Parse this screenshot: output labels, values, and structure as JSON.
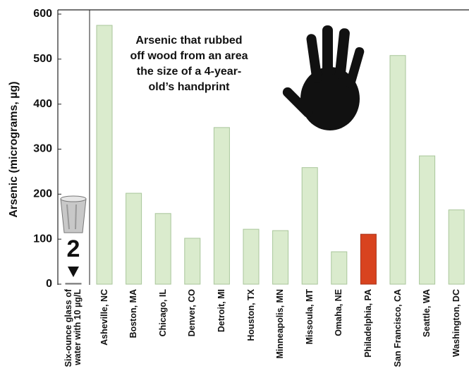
{
  "chart_data": {
    "type": "bar",
    "y_label": "Arsenic (micrograms, µg)",
    "annotation": [
      "Arsenic that rubbed",
      "off wood from an area",
      "the size of a 4-year-",
      "old’s handprint"
    ],
    "categories": [
      "Six-ounce glass of water with 10 µg/L",
      "Asheville, NC",
      "Boston, MA",
      "Chicago, IL",
      "Denver, CO",
      "Detroit, MI",
      "Houston, TX",
      "Minneapolis, MN",
      "Missoula, MT",
      "Omaha, NE",
      "Philadelphia, PA",
      "San Francisco, CA",
      "Seattle, WA",
      "Washington, DC"
    ],
    "values": [
      2,
      575,
      202,
      157,
      102,
      348,
      122,
      119,
      259,
      72,
      111,
      508,
      285,
      165
    ],
    "colors": [
      "#9a9a9a",
      "#daebcd",
      "#daebcd",
      "#daebcd",
      "#daebcd",
      "#daebcd",
      "#daebcd",
      "#daebcd",
      "#daebcd",
      "#daebcd",
      "#d8431f",
      "#daebcd",
      "#daebcd",
      "#daebcd"
    ],
    "ylim": [
      0,
      600
    ],
    "yticks": [
      0,
      100,
      200,
      300,
      400,
      500,
      600
    ]
  }
}
